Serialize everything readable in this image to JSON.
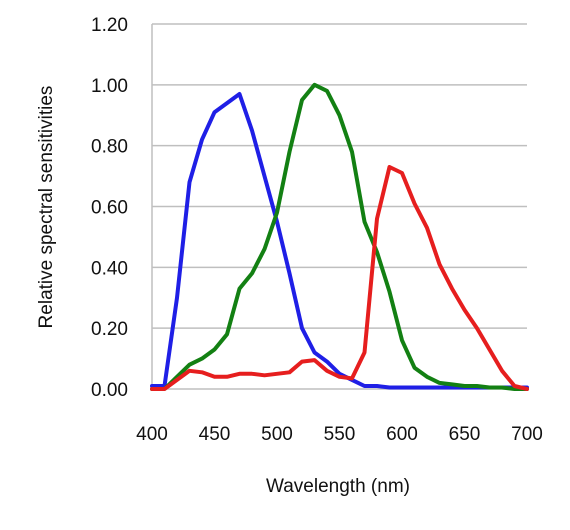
{
  "chart_data": {
    "type": "line",
    "title": "",
    "xlabel": "Wavelength (nm)",
    "ylabel": "Relative spectral sensitivities",
    "xlim": [
      400,
      700
    ],
    "ylim": [
      0,
      1.2
    ],
    "x_ticks": [
      400,
      450,
      500,
      550,
      600,
      650,
      700
    ],
    "x_tick_labels": [
      "400",
      "450",
      "500",
      "550",
      "600",
      "650",
      "700"
    ],
    "y_ticks": [
      0,
      0.2,
      0.4,
      0.6,
      0.8,
      1.0,
      1.2
    ],
    "y_tick_labels": [
      "0.00",
      "0.20",
      "0.40",
      "0.60",
      "0.80",
      "1.00",
      "1.20"
    ],
    "grid": "horizontal",
    "legend": "none",
    "series": [
      {
        "color": "#1f1fe6",
        "points": [
          [
            400,
            0.01
          ],
          [
            410,
            0.01
          ],
          [
            420,
            0.3
          ],
          [
            430,
            0.68
          ],
          [
            440,
            0.82
          ],
          [
            450,
            0.91
          ],
          [
            460,
            0.94
          ],
          [
            470,
            0.97
          ],
          [
            480,
            0.85
          ],
          [
            490,
            0.7
          ],
          [
            500,
            0.55
          ],
          [
            510,
            0.38
          ],
          [
            520,
            0.2
          ],
          [
            530,
            0.12
          ],
          [
            540,
            0.09
          ],
          [
            550,
            0.05
          ],
          [
            560,
            0.03
          ],
          [
            570,
            0.01
          ],
          [
            580,
            0.01
          ],
          [
            590,
            0.005
          ],
          [
            600,
            0.005
          ],
          [
            650,
            0.005
          ],
          [
            700,
            0.005
          ]
        ]
      },
      {
        "color": "#138013",
        "points": [
          [
            400,
            0.0
          ],
          [
            410,
            0.0
          ],
          [
            420,
            0.04
          ],
          [
            430,
            0.08
          ],
          [
            440,
            0.1
          ],
          [
            450,
            0.13
          ],
          [
            460,
            0.18
          ],
          [
            470,
            0.33
          ],
          [
            480,
            0.38
          ],
          [
            490,
            0.46
          ],
          [
            500,
            0.58
          ],
          [
            510,
            0.78
          ],
          [
            520,
            0.95
          ],
          [
            530,
            1.0
          ],
          [
            540,
            0.98
          ],
          [
            550,
            0.9
          ],
          [
            560,
            0.78
          ],
          [
            570,
            0.55
          ],
          [
            580,
            0.45
          ],
          [
            590,
            0.32
          ],
          [
            600,
            0.16
          ],
          [
            610,
            0.07
          ],
          [
            620,
            0.04
          ],
          [
            630,
            0.02
          ],
          [
            640,
            0.015
          ],
          [
            650,
            0.01
          ],
          [
            660,
            0.01
          ],
          [
            670,
            0.005
          ],
          [
            680,
            0.005
          ],
          [
            690,
            0.0
          ],
          [
            700,
            0.0
          ]
        ]
      },
      {
        "color": "#e61e1e",
        "points": [
          [
            400,
            0.0
          ],
          [
            410,
            0.0
          ],
          [
            420,
            0.03
          ],
          [
            430,
            0.06
          ],
          [
            440,
            0.055
          ],
          [
            450,
            0.04
          ],
          [
            460,
            0.04
          ],
          [
            470,
            0.05
          ],
          [
            480,
            0.05
          ],
          [
            490,
            0.045
          ],
          [
            500,
            0.05
          ],
          [
            510,
            0.055
          ],
          [
            520,
            0.09
          ],
          [
            530,
            0.095
          ],
          [
            540,
            0.06
          ],
          [
            550,
            0.04
          ],
          [
            560,
            0.035
          ],
          [
            570,
            0.12
          ],
          [
            580,
            0.56
          ],
          [
            590,
            0.73
          ],
          [
            600,
            0.71
          ],
          [
            610,
            0.61
          ],
          [
            620,
            0.53
          ],
          [
            630,
            0.41
          ],
          [
            640,
            0.33
          ],
          [
            650,
            0.26
          ],
          [
            660,
            0.2
          ],
          [
            670,
            0.13
          ],
          [
            680,
            0.06
          ],
          [
            690,
            0.01
          ],
          [
            700,
            0.0
          ]
        ]
      }
    ]
  }
}
